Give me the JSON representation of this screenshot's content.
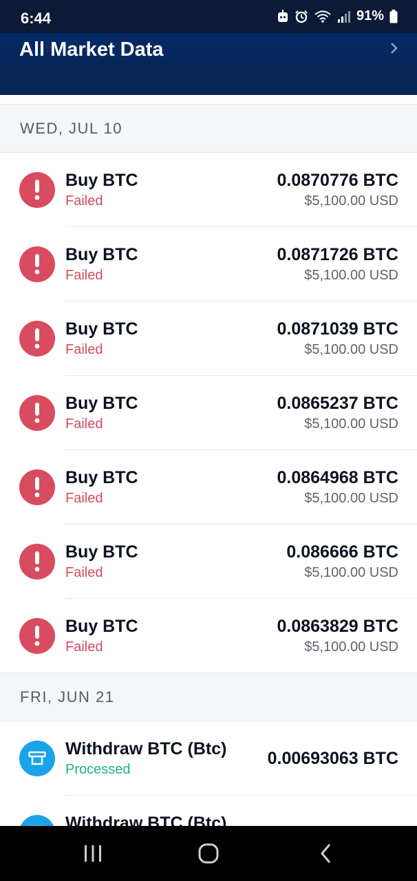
{
  "status_bar": {
    "time": "6:44",
    "battery": "91%"
  },
  "header": {
    "title": "All Market Data"
  },
  "sections": [
    {
      "date": "WED, JUL 10",
      "transactions": [
        {
          "title": "Buy BTC",
          "status": "Failed",
          "amount": "0.0870776 BTC",
          "fiat": "$5,100.00 USD"
        },
        {
          "title": "Buy BTC",
          "status": "Failed",
          "amount": "0.0871726 BTC",
          "fiat": "$5,100.00 USD"
        },
        {
          "title": "Buy BTC",
          "status": "Failed",
          "amount": "0.0871039 BTC",
          "fiat": "$5,100.00 USD"
        },
        {
          "title": "Buy BTC",
          "status": "Failed",
          "amount": "0.0865237 BTC",
          "fiat": "$5,100.00 USD"
        },
        {
          "title": "Buy BTC",
          "status": "Failed",
          "amount": "0.0864968 BTC",
          "fiat": "$5,100.00 USD"
        },
        {
          "title": "Buy BTC",
          "status": "Failed",
          "amount": "0.086666 BTC",
          "fiat": "$5,100.00 USD"
        },
        {
          "title": "Buy BTC",
          "status": "Failed",
          "amount": "0.0863829 BTC",
          "fiat": "$5,100.00 USD"
        }
      ]
    },
    {
      "date": "FRI, JUN 21",
      "transactions": [
        {
          "title": "Withdraw BTC (Btc)",
          "status": "Processed",
          "amount": "0.00693063 BTC"
        },
        {
          "title": "Withdraw BTC (Btc)"
        }
      ]
    }
  ],
  "colors": {
    "failed": "#d94b5e",
    "processed": "#1ab38a",
    "withdraw_icon": "#1aa3e8",
    "header": "#042a66"
  },
  "icons": {
    "failed_icon": "exclamation-icon",
    "withdraw_icon": "withdraw-tray-icon"
  }
}
